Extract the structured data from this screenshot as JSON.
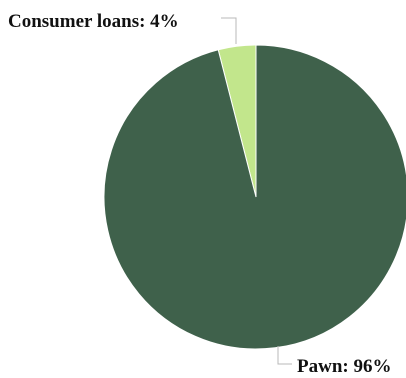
{
  "chart_data": {
    "type": "pie",
    "title": "",
    "categories": [
      "Consumer loans",
      "Pawn"
    ],
    "values": [
      4,
      96
    ],
    "unit": "%",
    "colors": [
      "#c2e68c",
      "#3f614b"
    ],
    "legend": "none",
    "labels": [
      {
        "text": "Consumer loans: 4%"
      },
      {
        "text": "Pawn: 96%"
      }
    ]
  }
}
